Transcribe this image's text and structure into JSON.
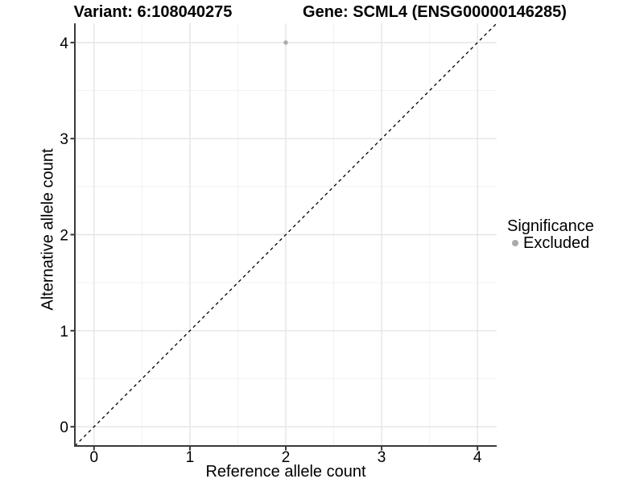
{
  "chart_data": {
    "type": "scatter",
    "title_left": "Variant: 6:108040275",
    "title_right": "Gene: SCML4 (ENSG00000146285)",
    "xlabel": "Reference allele count",
    "ylabel": "Alternative allele count",
    "xlim": [
      -0.2,
      4.2
    ],
    "ylim": [
      -0.2,
      4.2
    ],
    "x_ticks": [
      0,
      1,
      2,
      3,
      4
    ],
    "y_ticks": [
      0,
      1,
      2,
      3,
      4
    ],
    "x_minor_ticks": [
      0.5,
      1.5,
      2.5,
      3.5
    ],
    "y_minor_ticks": [
      0.5,
      1.5,
      2.5,
      3.5
    ],
    "grid": "major and minor gridlines, light gray on white panel",
    "series": [
      {
        "name": "Excluded",
        "marker": "circle",
        "color": "#aaaaaa",
        "points": [
          {
            "x": 2,
            "y": 4
          }
        ]
      }
    ],
    "reference_line": {
      "type": "identity y=x",
      "style": "dashed",
      "color": "#000000"
    },
    "legend": {
      "position": "right",
      "title": "Significance",
      "items": [
        {
          "label": "Excluded",
          "color": "#aaaaaa"
        }
      ]
    }
  },
  "colors": {
    "background": "#ffffff",
    "grid_major": "#e5e5e5",
    "grid_minor": "#f2f2f2",
    "axis_line": "#3a3a3a",
    "text": "#000000",
    "excluded_point": "#aaaaaa",
    "reference_line": "#000000"
  }
}
